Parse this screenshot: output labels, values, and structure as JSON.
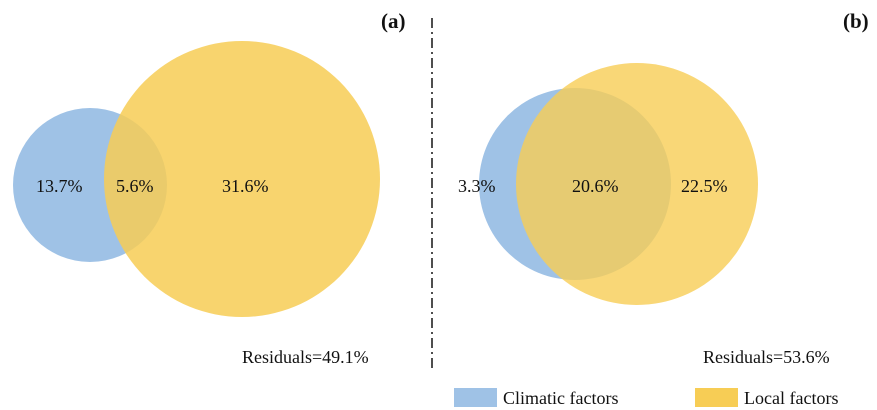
{
  "colors": {
    "climatic": "#9fc2e6",
    "local": "#f7cd55",
    "local_alpha": 0.85,
    "divider": "#222222"
  },
  "panels": [
    {
      "label": "(a)",
      "climatic_only": "13.7%",
      "shared": "5.6%",
      "local_only": "31.6%",
      "residuals": "Residuals=49.1%"
    },
    {
      "label": "(b)",
      "climatic_only": "3.3%",
      "shared": "20.6%",
      "local_only": "22.5%",
      "residuals": "Residuals=53.6%"
    }
  ],
  "legend": [
    {
      "label": "Climatic factors",
      "color": "#9fc2e6"
    },
    {
      "label": "Local factors",
      "color": "#f7cd55"
    }
  ]
}
